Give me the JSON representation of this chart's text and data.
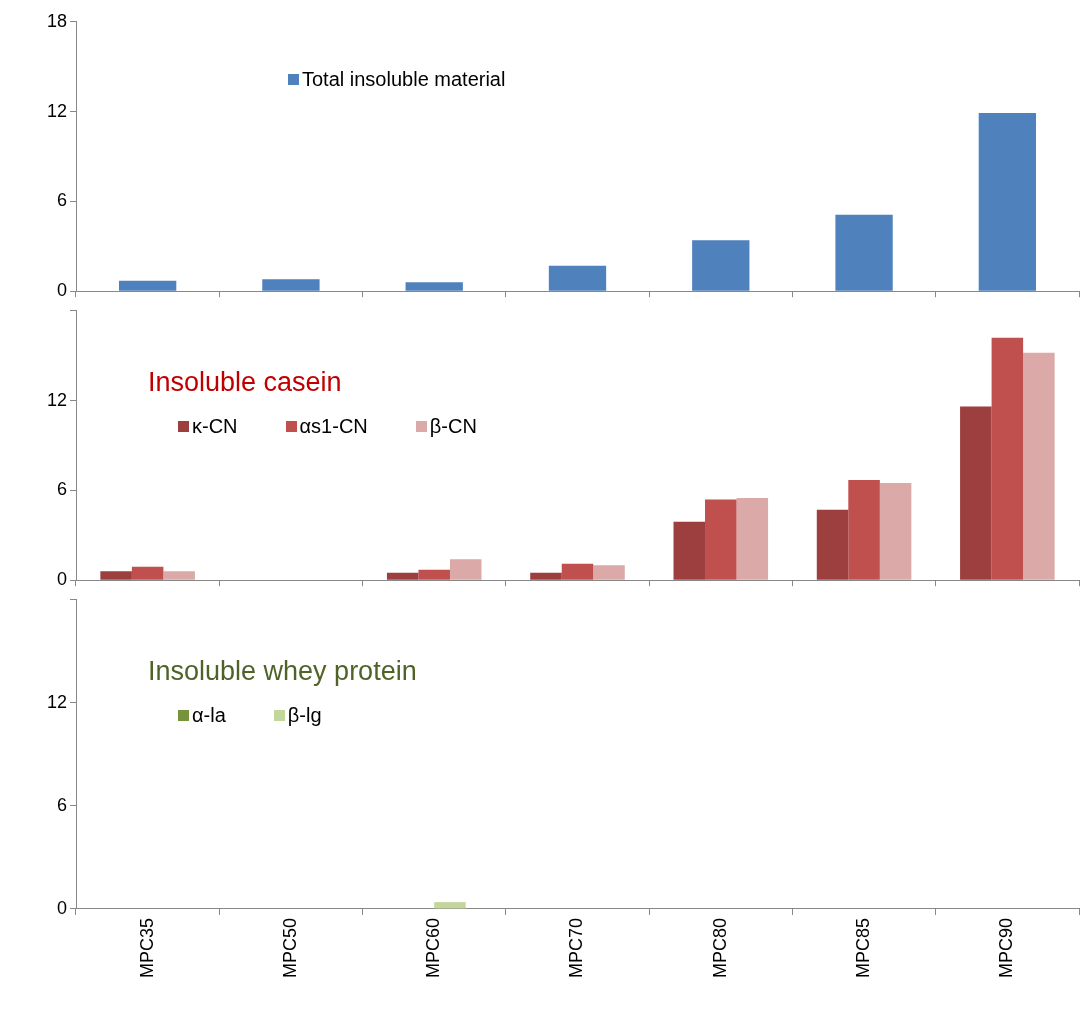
{
  "chart_data": [
    {
      "type": "bar",
      "series": [
        {
          "name": "Total insoluble material",
          "color": "#4f81bd",
          "values": [
            0.7,
            0.8,
            0.6,
            1.7,
            3.4,
            5.1,
            11.9
          ]
        }
      ],
      "ylim": [
        0,
        18
      ],
      "yticks": [
        0,
        6,
        12,
        18
      ],
      "tick_labels": "y",
      "grid": false,
      "legend": "top"
    },
    {
      "type": "bar",
      "title": "Insoluble casein",
      "series": [
        {
          "name": "κ-CN",
          "color": "#9c3f3e",
          "values": [
            0.6,
            0,
            0.5,
            0.5,
            3.9,
            4.7,
            11.6
          ]
        },
        {
          "name": "αs1-CN",
          "color": "#c0504d",
          "values": [
            0.9,
            0,
            0.7,
            1.1,
            5.4,
            6.7,
            16.2
          ]
        },
        {
          "name": "β-CN",
          "color": "#dba9a8",
          "values": [
            0.6,
            0,
            1.4,
            1.0,
            5.5,
            6.5,
            15.2
          ]
        }
      ],
      "ylim": [
        0,
        18
      ],
      "yticks": [
        0,
        6,
        12,
        {
          "value": 18,
          "label": null
        }
      ],
      "tick_labels": "y",
      "grid": false,
      "legend": "top left"
    },
    {
      "type": "bar",
      "title": "Insoluble whey protein",
      "categories": [
        "MPC35",
        "MPC50",
        "MPC60",
        "MPC70",
        "MPC80",
        "MPC85",
        "MPC90"
      ],
      "series": [
        {
          "name": "α-la",
          "color": "#77933c",
          "values": [
            0,
            0,
            0,
            0,
            0,
            0,
            0
          ]
        },
        {
          "name": "β-lg",
          "color": "#c3d69b",
          "values": [
            0,
            0,
            0.4,
            0,
            0,
            null,
            0
          ]
        }
      ],
      "ylim": [
        0,
        18
      ],
      "yticks": [
        0,
        6,
        12,
        {
          "value": 18,
          "label": null
        }
      ],
      "grid": false,
      "legend": "top left"
    }
  ]
}
